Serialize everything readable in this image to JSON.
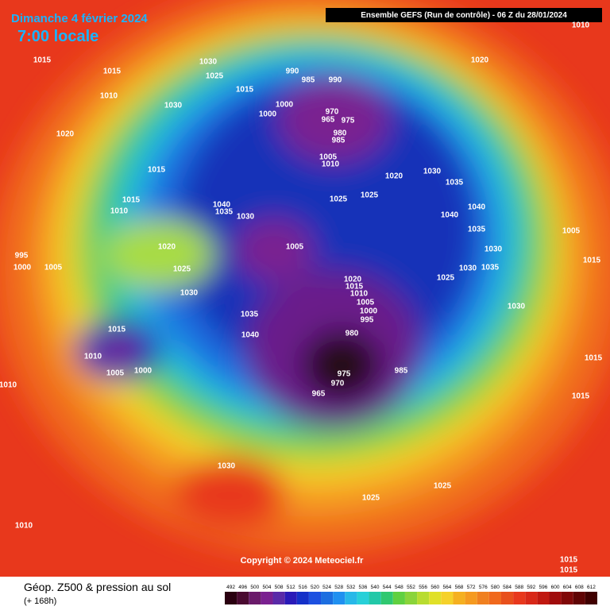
{
  "header": {
    "date": "Dimanche 4 février 2024",
    "time": "7:00 locale",
    "run": "Ensemble GEFS  (Run de contrôle)  -  06 Z du 28/01/2024"
  },
  "map": {
    "copyright": "Copyright © 2024 Meteociel.fr",
    "pressure_labels": [
      "1015",
      "1015",
      "1010",
      "1030",
      "1025",
      "1015",
      "1030",
      "990",
      "985",
      "990",
      "1000",
      "1000",
      "970",
      "965",
      "975",
      "980",
      "985",
      "1005",
      "1010",
      "1020",
      "1020",
      "1030",
      "1035",
      "1025",
      "1025",
      "1020",
      "1015",
      "1015",
      "1010",
      "1040",
      "1035",
      "1030",
      "1040",
      "1040",
      "1035",
      "1030",
      "1005",
      "1015",
      "1005",
      "1020",
      "1025",
      "1030",
      "995",
      "1000",
      "1005",
      "1020",
      "1015",
      "1010",
      "1005",
      "1000",
      "995",
      "980",
      "975",
      "970",
      "965",
      "985",
      "1025",
      "1030",
      "1035",
      "1030",
      "1035",
      "1040",
      "1015",
      "1010",
      "1005",
      "1000",
      "1015",
      "1015",
      "1010",
      "1030",
      "1025",
      "1025",
      "1010",
      "1015",
      "1015",
      "1010"
    ]
  },
  "footer": {
    "title": "Géop. Z500 & pression au sol",
    "lead": "(+ 168h)",
    "scale": [
      492,
      496,
      500,
      504,
      508,
      512,
      516,
      520,
      524,
      528,
      532,
      536,
      540,
      544,
      548,
      552,
      556,
      560,
      564,
      568,
      572,
      576,
      580,
      584,
      588,
      592,
      596,
      600,
      604,
      608,
      612
    ]
  }
}
